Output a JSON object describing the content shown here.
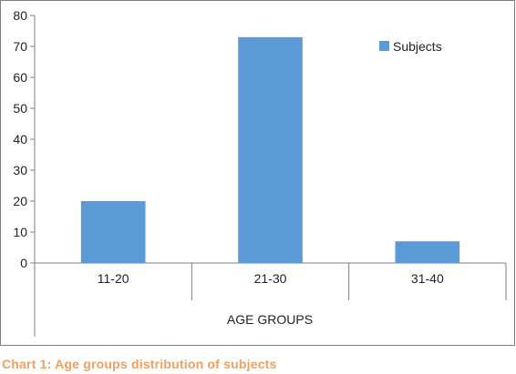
{
  "chart_data": {
    "type": "bar",
    "categories": [
      "11-20",
      "21-30",
      "31-40"
    ],
    "series": [
      {
        "name": "Subjects",
        "values": [
          20,
          73,
          7
        ],
        "color": "#5b9bd5"
      }
    ],
    "title": "",
    "xlabel": "AGE GROUPS",
    "ylabel": "",
    "ylim": [
      0,
      80
    ],
    "yticks": [
      0,
      10,
      20,
      30,
      40,
      50,
      60,
      70,
      80
    ],
    "grid": false,
    "legend": "top-right"
  },
  "caption": {
    "label": "Chart 1:",
    "text": "Age groups distribution of subjects",
    "color": "#f0a060"
  },
  "frame_color": "#7f7f7f"
}
